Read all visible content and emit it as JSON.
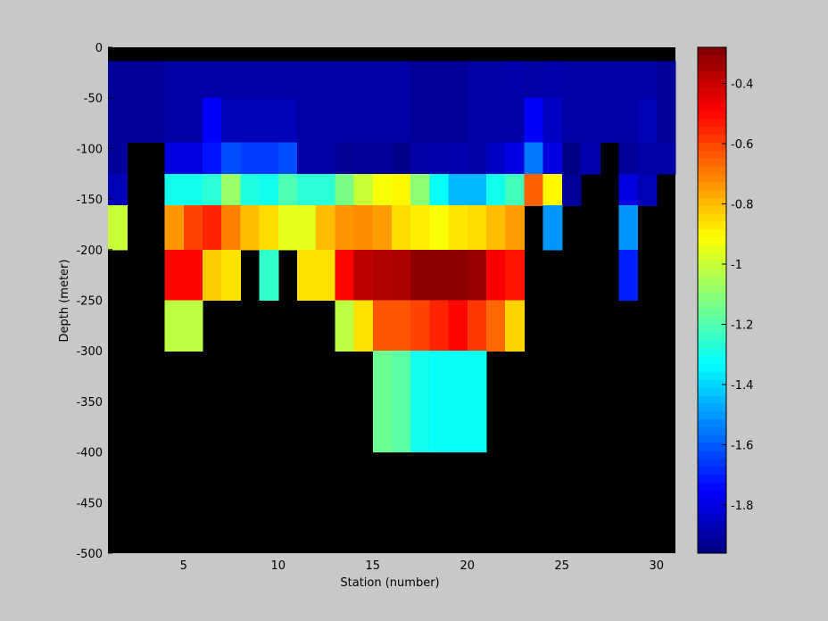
{
  "chart_data": {
    "type": "heatmap",
    "title": "",
    "xlabel": "Station (number)",
    "ylabel": "Depth (meter)",
    "xlim": [
      1,
      31
    ],
    "ylim": [
      -500,
      0
    ],
    "x_ticks": [
      5,
      10,
      15,
      20,
      25,
      30
    ],
    "y_ticks": [
      0,
      -50,
      -100,
      -150,
      -200,
      -250,
      -300,
      -350,
      -400,
      -450,
      -500
    ],
    "stations": [
      1.5,
      2.5,
      3.5,
      4.5,
      5.5,
      6.5,
      7.5,
      8.5,
      9.5,
      10.5,
      11.5,
      12.5,
      13.5,
      14.5,
      15.5,
      16.5,
      17.5,
      18.5,
      19.5,
      20.5,
      21.5,
      22.5,
      23.5,
      24.5,
      25.5,
      26.5,
      27.5,
      28.5,
      29.5,
      30.5
    ],
    "depths": [
      -2.5,
      -25,
      -75,
      -112.5,
      -137.5,
      -175,
      -225,
      -275,
      -325,
      -375,
      -425,
      -475
    ],
    "values": [
      [
        null,
        null,
        null,
        null,
        null,
        null,
        null,
        null,
        null,
        null,
        null,
        null,
        null,
        null,
        null,
        null,
        null,
        null,
        null,
        null,
        null,
        null,
        null,
        null,
        null,
        null,
        null,
        null,
        null,
        null
      ],
      [
        -1.92,
        -1.92,
        -1.92,
        -1.9,
        -1.9,
        -1.9,
        -1.9,
        -1.9,
        -1.9,
        -1.9,
        -1.9,
        -1.9,
        -1.9,
        -1.9,
        -1.9,
        -1.9,
        -1.92,
        -1.92,
        -1.92,
        -1.9,
        -1.9,
        -1.89,
        -1.9,
        -1.89,
        -1.9,
        -1.9,
        -1.9,
        -1.9,
        -1.9,
        -1.92
      ],
      [
        -1.92,
        -1.92,
        -1.92,
        -1.9,
        -1.9,
        -1.75,
        -1.87,
        -1.87,
        -1.87,
        -1.87,
        -1.9,
        -1.9,
        -1.9,
        -1.9,
        -1.9,
        -1.9,
        -1.92,
        -1.92,
        -1.92,
        -1.9,
        -1.9,
        -1.9,
        -1.75,
        -1.85,
        -1.9,
        -1.9,
        -1.9,
        -1.9,
        -1.87,
        -1.92
      ],
      [
        -1.92,
        null,
        null,
        -1.8,
        -1.8,
        -1.72,
        -1.62,
        -1.65,
        -1.65,
        -1.62,
        -1.9,
        -1.9,
        -1.93,
        -1.92,
        -1.92,
        -1.94,
        -1.9,
        -1.89,
        -1.88,
        -1.9,
        -1.85,
        -1.8,
        -1.55,
        -1.8,
        -1.95,
        -1.88,
        null,
        -1.92,
        -1.9,
        -1.9
      ],
      [
        -1.87,
        null,
        null,
        -1.3,
        -1.3,
        -1.26,
        -1.08,
        -1.28,
        -1.3,
        -1.2,
        -1.26,
        -1.26,
        -1.13,
        -1.0,
        -0.92,
        -0.9,
        -1.1,
        -1.32,
        -1.45,
        -1.45,
        -1.3,
        -1.22,
        -0.65,
        -0.9,
        -1.92,
        null,
        null,
        -1.8,
        -1.87,
        null
      ],
      [
        -1.0,
        null,
        null,
        -0.74,
        -0.6,
        -0.55,
        -0.7,
        -0.8,
        -0.85,
        -0.95,
        -0.95,
        -0.8,
        -0.74,
        -0.72,
        -0.75,
        -0.85,
        -0.88,
        -0.92,
        -0.87,
        -0.85,
        -0.8,
        -0.75,
        null,
        -1.5,
        null,
        null,
        null,
        -1.5,
        null,
        null
      ],
      [
        null,
        null,
        null,
        -0.5,
        -0.5,
        -0.83,
        -0.86,
        null,
        -1.25,
        null,
        -0.86,
        -0.86,
        -0.5,
        -0.38,
        -0.36,
        -0.35,
        -0.3,
        -0.3,
        -0.3,
        -0.32,
        -0.48,
        -0.52,
        null,
        null,
        null,
        null,
        null,
        -1.7,
        null,
        null
      ],
      [
        null,
        null,
        null,
        -1.02,
        -1.02,
        null,
        null,
        null,
        null,
        null,
        null,
        null,
        -1.02,
        -0.86,
        -0.63,
        -0.63,
        -0.6,
        -0.55,
        -0.5,
        -0.58,
        -0.66,
        -0.84,
        null,
        null,
        null,
        null,
        null,
        null,
        null,
        null
      ],
      [
        null,
        null,
        null,
        null,
        null,
        null,
        null,
        null,
        null,
        null,
        null,
        null,
        null,
        null,
        -1.15,
        -1.18,
        -1.3,
        -1.32,
        -1.32,
        -1.32,
        null,
        null,
        null,
        null,
        null,
        null,
        null,
        null,
        null,
        null
      ],
      [
        null,
        null,
        null,
        null,
        null,
        null,
        null,
        null,
        null,
        null,
        null,
        null,
        null,
        null,
        -1.15,
        -1.18,
        -1.3,
        -1.32,
        -1.32,
        -1.32,
        null,
        null,
        null,
        null,
        null,
        null,
        null,
        null,
        null,
        null
      ],
      [
        null,
        null,
        null,
        null,
        null,
        null,
        null,
        null,
        null,
        null,
        null,
        null,
        null,
        null,
        null,
        null,
        null,
        null,
        null,
        null,
        null,
        null,
        null,
        null,
        null,
        null,
        null,
        null,
        null,
        null
      ],
      [
        null,
        null,
        null,
        null,
        null,
        null,
        null,
        null,
        null,
        null,
        null,
        null,
        null,
        null,
        null,
        null,
        null,
        null,
        null,
        null,
        null,
        null,
        null,
        null,
        null,
        null,
        null,
        null,
        null,
        null
      ]
    ],
    "colorbar": {
      "range": [
        -1.96,
        -0.28
      ],
      "ticks": [
        "-0.4",
        "-0.6",
        "-0.8",
        "-1",
        "-1.2",
        "-1.4",
        "-1.6",
        "-1.8"
      ],
      "colormap": "jet"
    },
    "missing_color": "#000000",
    "background_color": "#c8c8c8"
  }
}
